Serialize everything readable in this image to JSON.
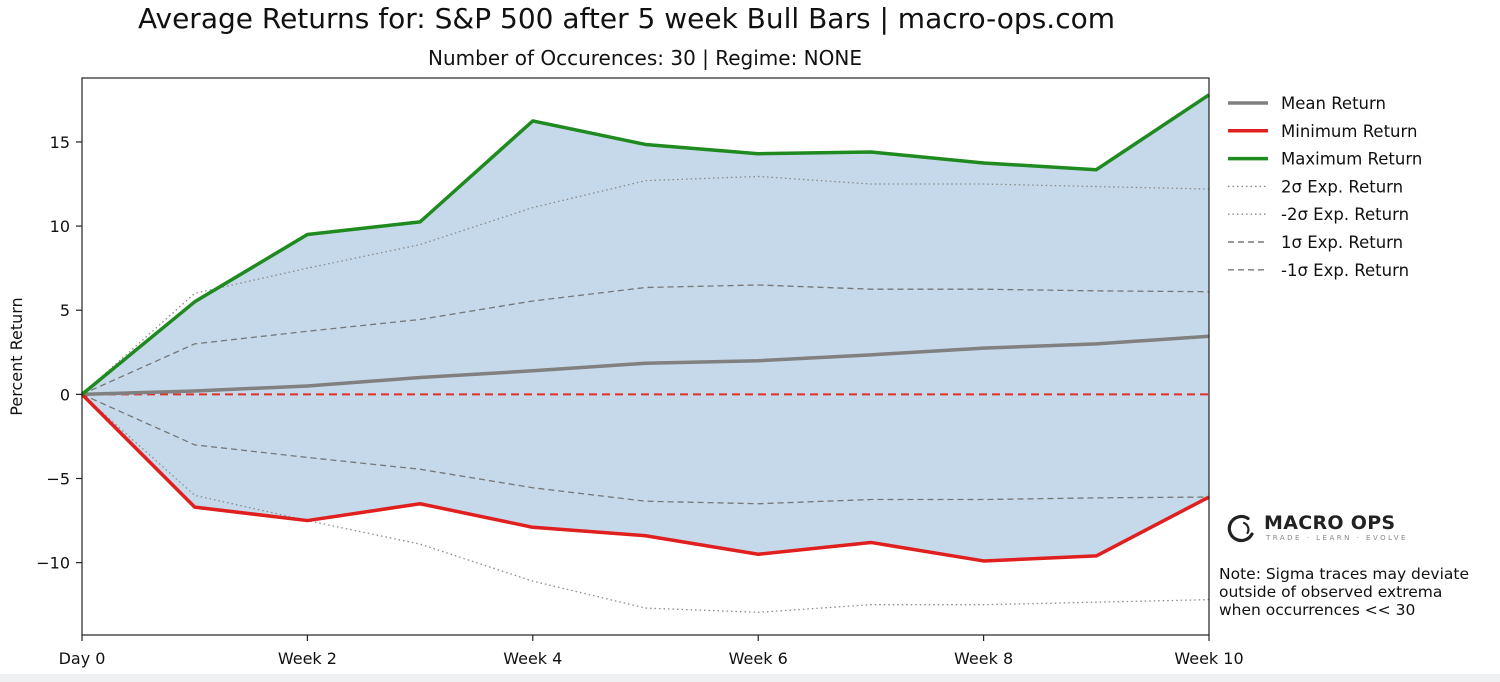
{
  "chart_data": {
    "type": "line",
    "title": "Average Returns for: S&P 500 after 5 week Bull Bars | macro-ops.com",
    "subtitle": "Number of Occurences: 30 | Regime: NONE",
    "xlabel": "",
    "ylabel": "Percent Return",
    "x": [
      0,
      1,
      2,
      3,
      4,
      5,
      6,
      7,
      8,
      9,
      10
    ],
    "xticks": [
      0,
      2,
      4,
      6,
      8,
      10
    ],
    "xtick_labels": [
      "Day 0",
      "Week 2",
      "Week 4",
      "Week 6",
      "Week 8",
      "Week 10"
    ],
    "yticks": [
      -10,
      -5,
      0,
      5,
      10,
      15
    ],
    "ytick_labels": [
      "−10",
      "−5",
      "0",
      "5",
      "10",
      "15"
    ],
    "xlim": [
      0,
      10
    ],
    "ylim": [
      -14.3,
      18.8
    ],
    "legend_position": "outside-right",
    "fill_between": {
      "upper": "Maximum Return",
      "lower": "Minimum Return",
      "color": "#c6d9ea"
    },
    "zero_line": {
      "value": 0,
      "color": "#e0302a",
      "style": "dashed"
    },
    "series": [
      {
        "name": "Mean Return",
        "color": "#808080",
        "style": "solid",
        "width": 3.5,
        "values": [
          0,
          0.2,
          0.5,
          1.0,
          1.4,
          1.85,
          2.0,
          2.35,
          2.75,
          3.0,
          3.45
        ]
      },
      {
        "name": "Minimum Return",
        "color": "#e01f1f",
        "style": "solid",
        "width": 3.5,
        "values": [
          0,
          -6.7,
          -7.5,
          -6.5,
          -7.9,
          -8.4,
          -9.5,
          -8.8,
          -9.9,
          -9.6,
          -6.1
        ]
      },
      {
        "name": "Maximum Return",
        "color": "#1f8a1f",
        "style": "solid",
        "width": 3.5,
        "values": [
          0,
          5.5,
          9.5,
          10.25,
          16.25,
          14.85,
          14.3,
          14.4,
          13.75,
          13.35,
          17.8
        ]
      },
      {
        "name": "2σ Exp. Return",
        "color": "#8a8a8a",
        "style": "dotted",
        "width": 1.3,
        "values": [
          0,
          6.0,
          7.5,
          8.9,
          11.1,
          12.7,
          12.95,
          12.5,
          12.5,
          12.35,
          12.2
        ]
      },
      {
        "name": "-2σ Exp. Return",
        "color": "#8a8a8a",
        "style": "dotted",
        "width": 1.3,
        "values": [
          0,
          -6.0,
          -7.5,
          -8.9,
          -11.1,
          -12.7,
          -12.95,
          -12.5,
          -12.5,
          -12.35,
          -12.2
        ]
      },
      {
        "name": "1σ Exp. Return",
        "color": "#777777",
        "style": "dashed",
        "width": 1.3,
        "values": [
          0,
          3.0,
          3.75,
          4.45,
          5.55,
          6.35,
          6.5,
          6.25,
          6.25,
          6.15,
          6.1
        ]
      },
      {
        "name": "-1σ Exp. Return",
        "color": "#777777",
        "style": "dashed",
        "width": 1.3,
        "values": [
          0,
          -3.0,
          -3.75,
          -4.45,
          -5.55,
          -6.35,
          -6.5,
          -6.25,
          -6.25,
          -6.15,
          -6.1
        ]
      }
    ]
  },
  "logo": {
    "name": "MACRO OPS",
    "tagline": "TRADE · LEARN · EVOLVE"
  },
  "note_lines": [
    "Note: Sigma traces may deviate",
    "outside of observed extrema",
    "when occurrences << 30"
  ]
}
